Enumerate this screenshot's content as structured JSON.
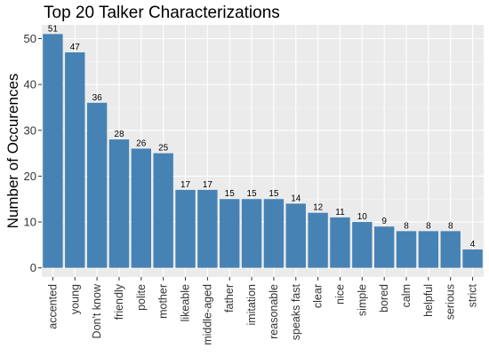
{
  "chart_data": {
    "type": "bar",
    "title": "Top 20 Talker Characterizations",
    "xlabel": "",
    "ylabel": "Number of Occurences",
    "categories": [
      "accented",
      "young",
      "Don't know",
      "friendly",
      "polite",
      "mother",
      "likeable",
      "middle-aged",
      "father",
      "imitation",
      "reasonable",
      "speaks fast",
      "clear",
      "nice",
      "simple",
      "bored",
      "calm",
      "helpful",
      "serious",
      "strict"
    ],
    "values": [
      51,
      47,
      36,
      28,
      26,
      25,
      17,
      17,
      15,
      15,
      15,
      14,
      12,
      11,
      10,
      9,
      8,
      8,
      8,
      4
    ],
    "ylim": [
      -2,
      53
    ],
    "yticks": [
      0,
      10,
      20,
      30,
      40,
      50
    ],
    "grid": true,
    "colors": {
      "bar": "#4682B4",
      "panel": "#EBEBEB",
      "grid_major": "#FFFFFF",
      "grid_minor": "#F5F5F5"
    }
  }
}
